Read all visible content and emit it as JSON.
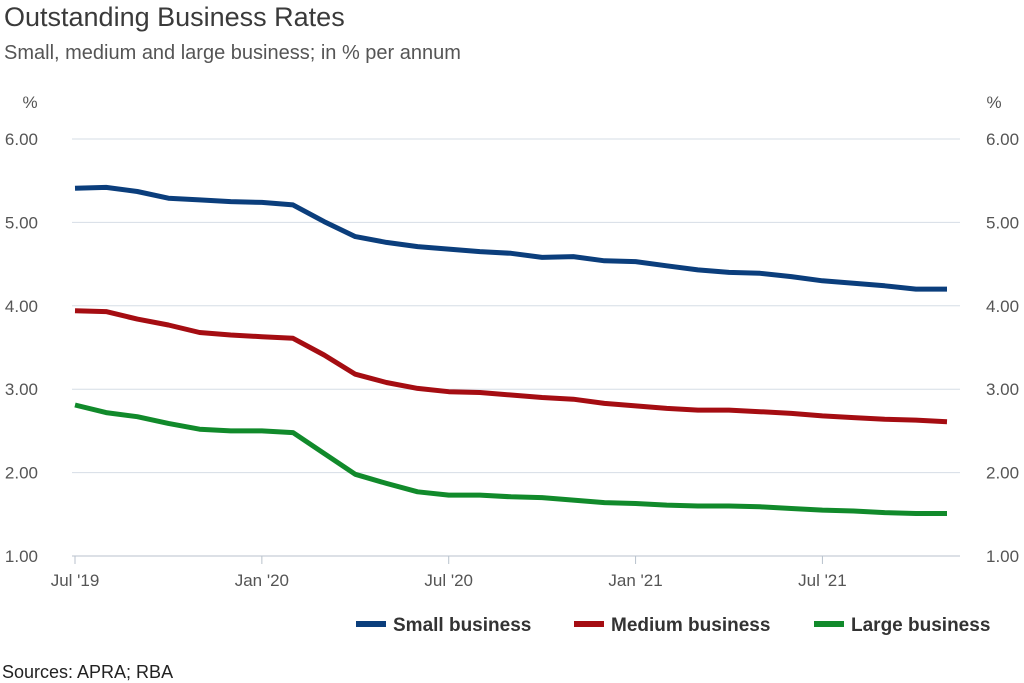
{
  "header": {
    "title": "Outstanding Business Rates",
    "subtitle": "Small, medium and large business; in % per annum"
  },
  "footer": {
    "source": "Sources: APRA; RBA"
  },
  "chart_data": {
    "type": "line",
    "title": "Outstanding Business Rates",
    "subtitle": "Small, medium and large business; in % per annum",
    "ylabel_left": "%",
    "ylabel_right": "%",
    "ylim": [
      1.0,
      6.0
    ],
    "yticks": [
      "1.00",
      "2.00",
      "3.00",
      "4.00",
      "5.00",
      "6.00"
    ],
    "xticks": [
      "Jul '19",
      "Jan '20",
      "Jul '20",
      "Jan '21",
      "Jul '21"
    ],
    "x": [
      "2019-07",
      "2019-08",
      "2019-09",
      "2019-10",
      "2019-11",
      "2019-12",
      "2020-01",
      "2020-02",
      "2020-03",
      "2020-04",
      "2020-05",
      "2020-06",
      "2020-07",
      "2020-08",
      "2020-09",
      "2020-10",
      "2020-11",
      "2020-12",
      "2021-01",
      "2021-02",
      "2021-03",
      "2021-04",
      "2021-05",
      "2021-06",
      "2021-07",
      "2021-08",
      "2021-09",
      "2021-10",
      "2021-11"
    ],
    "grid": true,
    "legend_position": "bottom-right",
    "series": [
      {
        "name": "Small business",
        "color": "#0b3e7c",
        "values": [
          5.41,
          5.42,
          5.37,
          5.29,
          5.27,
          5.25,
          5.24,
          5.21,
          5.01,
          4.83,
          4.76,
          4.71,
          4.68,
          4.65,
          4.63,
          4.58,
          4.59,
          4.54,
          4.53,
          4.48,
          4.43,
          4.4,
          4.39,
          4.35,
          4.3,
          4.27,
          4.24,
          4.2,
          4.2
        ]
      },
      {
        "name": "Medium business",
        "color": "#a50d12",
        "values": [
          3.94,
          3.93,
          3.84,
          3.77,
          3.68,
          3.65,
          3.63,
          3.61,
          3.41,
          3.18,
          3.08,
          3.01,
          2.97,
          2.96,
          2.93,
          2.9,
          2.88,
          2.83,
          2.8,
          2.77,
          2.75,
          2.75,
          2.73,
          2.71,
          2.68,
          2.66,
          2.64,
          2.63,
          2.61
        ]
      },
      {
        "name": "Large business",
        "color": "#118a2b",
        "values": [
          2.81,
          2.72,
          2.67,
          2.59,
          2.52,
          2.5,
          2.5,
          2.48,
          2.23,
          1.98,
          1.87,
          1.77,
          1.73,
          1.73,
          1.71,
          1.7,
          1.67,
          1.64,
          1.63,
          1.61,
          1.6,
          1.6,
          1.59,
          1.57,
          1.55,
          1.54,
          1.52,
          1.51,
          1.51
        ]
      }
    ]
  }
}
